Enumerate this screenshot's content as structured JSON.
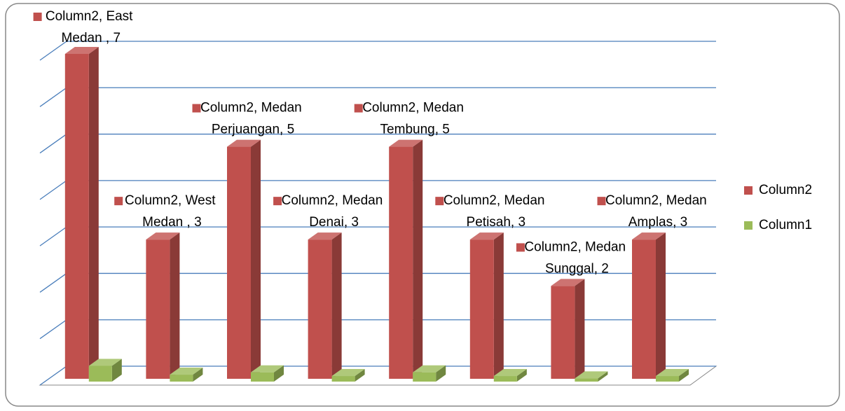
{
  "chart_data": {
    "type": "bar3d",
    "categories": [
      "East Medan ",
      "West Medan ",
      "Medan Perjuangan",
      "Medan Denai",
      "Medan Tembung",
      "Medan Petisah",
      "Medan Sunggal",
      "Medan Amplas"
    ],
    "series": [
      {
        "name": "Column2",
        "color": "#c0504d",
        "values": [
          7,
          3,
          5,
          3,
          5,
          3,
          2,
          3
        ],
        "value_labels": [
          "Column2, East Medan , 7",
          "Column2, West Medan , 3",
          "Column2, Medan Perjuangan, 5",
          "Column2, Medan Denai, 3",
          "Column2, Medan Tembung, 5",
          "Column2, Medan Petisah, 3",
          "Column2, Medan Sunggal, 2",
          "Column2, Medan Amplas, 3"
        ]
      },
      {
        "name": "Column1",
        "color": "#9bbb59",
        "values": [
          0.34,
          0.15,
          0.2,
          0.12,
          0.2,
          0.12,
          0.07,
          0.12
        ]
      }
    ],
    "ylim": [
      0,
      7
    ],
    "yticks": [
      0,
      1,
      2,
      3,
      4,
      5,
      6,
      7
    ],
    "grid": true,
    "legend": "right"
  }
}
